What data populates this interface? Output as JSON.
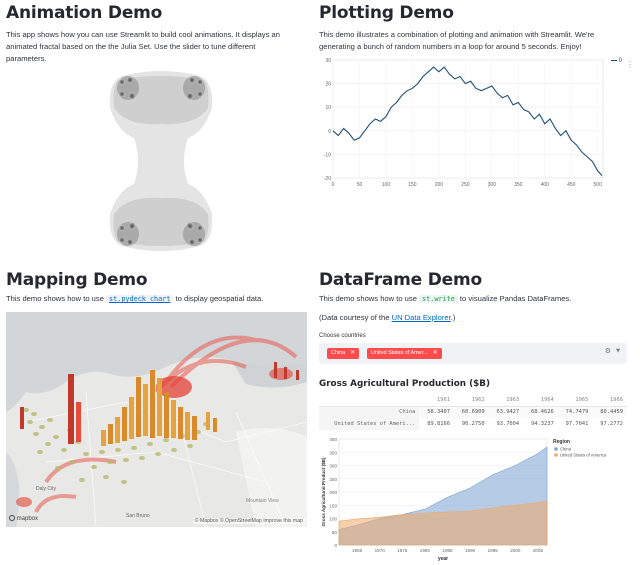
{
  "animation": {
    "title": "Animation Demo",
    "description": "This app shows how you can use Streamlit to build cool animations. It displays an animated fractal based on the the Julia Set. Use the slider to tune different parameters."
  },
  "plotting": {
    "title": "Plotting Demo",
    "description": "This demo illustrates a combination of plotting and animation with Streamlit. We're generating a bunch of random numbers in a loop for around 5 seconds. Enjoy!",
    "legend_label": "0",
    "menu_icon": "ellipsis-icon"
  },
  "mapping": {
    "title": "Mapping Demo",
    "description_before": "This demo shows how to use ",
    "code": "st.pydeck_chart",
    "description_after": " to display geospatial data.",
    "attribution": "© Mapbox © OpenStreetMap Improve this map",
    "logo": "mapbox",
    "place_labels": [
      "Daly City",
      "San Bruno",
      "Mountain View"
    ]
  },
  "dataframe": {
    "title": "DataFrame Demo",
    "description_before": "This demo shows how to use ",
    "code": "st.write",
    "description_after": " to visualize Pandas DataFrames.",
    "courtesy_before": "(Data courtesy of the ",
    "courtesy_link": "UN Data Explorer",
    "courtesy_after": ".)",
    "choose_label": "Choose countries",
    "tags": [
      "China",
      "United States of Amer..."
    ],
    "table_title": "Gross Agricultural Production ($B)",
    "table": {
      "columns": [
        "1961",
        "1962",
        "1963",
        "1964",
        "1965",
        "1966"
      ],
      "rows": [
        {
          "label": "China",
          "values": [
            "58.3407",
            "60.6909",
            "63.9427",
            "68.4626",
            "74.7479",
            "80.4459"
          ]
        },
        {
          "label": "United States of Ameri...",
          "values": [
            "89.8166",
            "90.2750",
            "93.7004",
            "94.3237",
            "97.7041",
            "97.2772"
          ]
        }
      ]
    }
  },
  "chart_data": [
    {
      "type": "line",
      "title": "",
      "xlabel": "",
      "ylabel": "",
      "xlim": [
        0,
        510
      ],
      "ylim": [
        -20,
        30
      ],
      "x_ticks": [
        0,
        50,
        100,
        150,
        200,
        250,
        300,
        350,
        400,
        450,
        500
      ],
      "y_ticks": [
        30,
        20,
        10,
        0,
        -10,
        -20
      ],
      "series": [
        {
          "name": "0",
          "color": "#1f4e79",
          "x": [
            0,
            10,
            20,
            30,
            40,
            50,
            60,
            70,
            80,
            90,
            100,
            110,
            120,
            130,
            140,
            150,
            160,
            170,
            180,
            190,
            200,
            210,
            220,
            230,
            240,
            250,
            260,
            270,
            280,
            290,
            300,
            310,
            320,
            330,
            340,
            350,
            360,
            370,
            380,
            390,
            400,
            410,
            420,
            430,
            440,
            450,
            460,
            470,
            480,
            490,
            500,
            508
          ],
          "y": [
            0,
            -2,
            1,
            -1,
            -4,
            -3,
            0,
            3,
            5,
            4,
            6,
            10,
            12,
            15,
            17,
            18,
            20,
            23,
            25,
            27,
            25,
            27,
            24,
            22,
            23,
            20,
            21,
            18,
            17,
            18,
            19,
            16,
            14,
            15,
            11,
            12,
            9,
            8,
            5,
            7,
            3,
            5,
            1,
            -2,
            0,
            -4,
            -6,
            -9,
            -11,
            -13,
            -17,
            -19
          ]
        }
      ]
    },
    {
      "type": "area",
      "title": "",
      "xlabel": "year",
      "ylabel": "Gross Agricultural Product ($B)",
      "xlim": [
        1961,
        2007
      ],
      "ylim": [
        0,
        400
      ],
      "x_ticks": [
        1965,
        1970,
        1975,
        1980,
        1985,
        1990,
        1995,
        2000,
        2005
      ],
      "y_ticks": [
        0,
        50,
        100,
        150,
        200,
        250,
        300,
        350,
        400
      ],
      "legend": {
        "title": "Region",
        "position": "right"
      },
      "series": [
        {
          "name": "China",
          "color": "#7aa3d1",
          "x": [
            1961,
            1965,
            1970,
            1975,
            1980,
            1985,
            1990,
            1995,
            2000,
            2005,
            2007
          ],
          "y": [
            58,
            75,
            100,
            115,
            135,
            180,
            215,
            265,
            300,
            345,
            370
          ]
        },
        {
          "name": "United States of America",
          "color": "#f0a868",
          "x": [
            1961,
            1965,
            1970,
            1975,
            1980,
            1985,
            1990,
            1995,
            2000,
            2005,
            2007
          ],
          "y": [
            90,
            98,
            105,
            115,
            120,
            125,
            128,
            140,
            150,
            160,
            165
          ]
        }
      ]
    }
  ]
}
